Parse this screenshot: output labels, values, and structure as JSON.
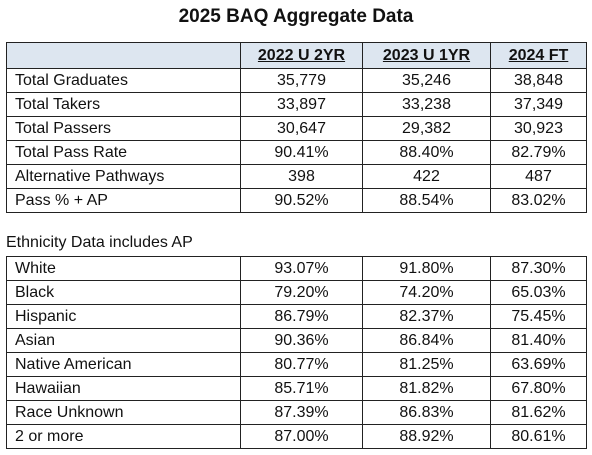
{
  "header": {
    "title": "2025 BAQ Aggregate Data"
  },
  "table": {
    "columns": [
      "2022 U 2YR",
      "2023 U 1YR",
      "2024 FT"
    ],
    "rows": [
      [
        "Total Graduates",
        "35,779",
        "35,246",
        "38,848"
      ],
      [
        "Total Takers",
        "33,897",
        "33,238",
        "37,349"
      ],
      [
        "Total Passers",
        "30,647",
        "29,382",
        "30,923"
      ],
      [
        "Total Pass Rate",
        "90.41%",
        "88.40%",
        "82.79%"
      ],
      [
        "Alternative Pathways",
        "398",
        "422",
        "487"
      ],
      [
        "Pass % + AP",
        "90.52%",
        "88.54%",
        "83.02%"
      ]
    ]
  },
  "ethnicity": {
    "title": "Ethnicity Data includes AP",
    "rows": [
      [
        "White",
        "93.07%",
        "91.80%",
        "87.30%"
      ],
      [
        "Black",
        "79.20%",
        "74.20%",
        "65.03%"
      ],
      [
        "Hispanic",
        "86.79%",
        "82.37%",
        "75.45%"
      ],
      [
        "Asian",
        "90.36%",
        "86.84%",
        "81.40%"
      ],
      [
        "Native American",
        "80.77%",
        "81.25%",
        "63.69%"
      ],
      [
        "Hawaiian",
        "85.71%",
        "81.82%",
        "67.80%"
      ],
      [
        "Race Unknown",
        "87.39%",
        "86.83%",
        "81.62%"
      ],
      [
        "2 or more",
        "87.00%",
        "88.92%",
        "80.61%"
      ]
    ]
  }
}
